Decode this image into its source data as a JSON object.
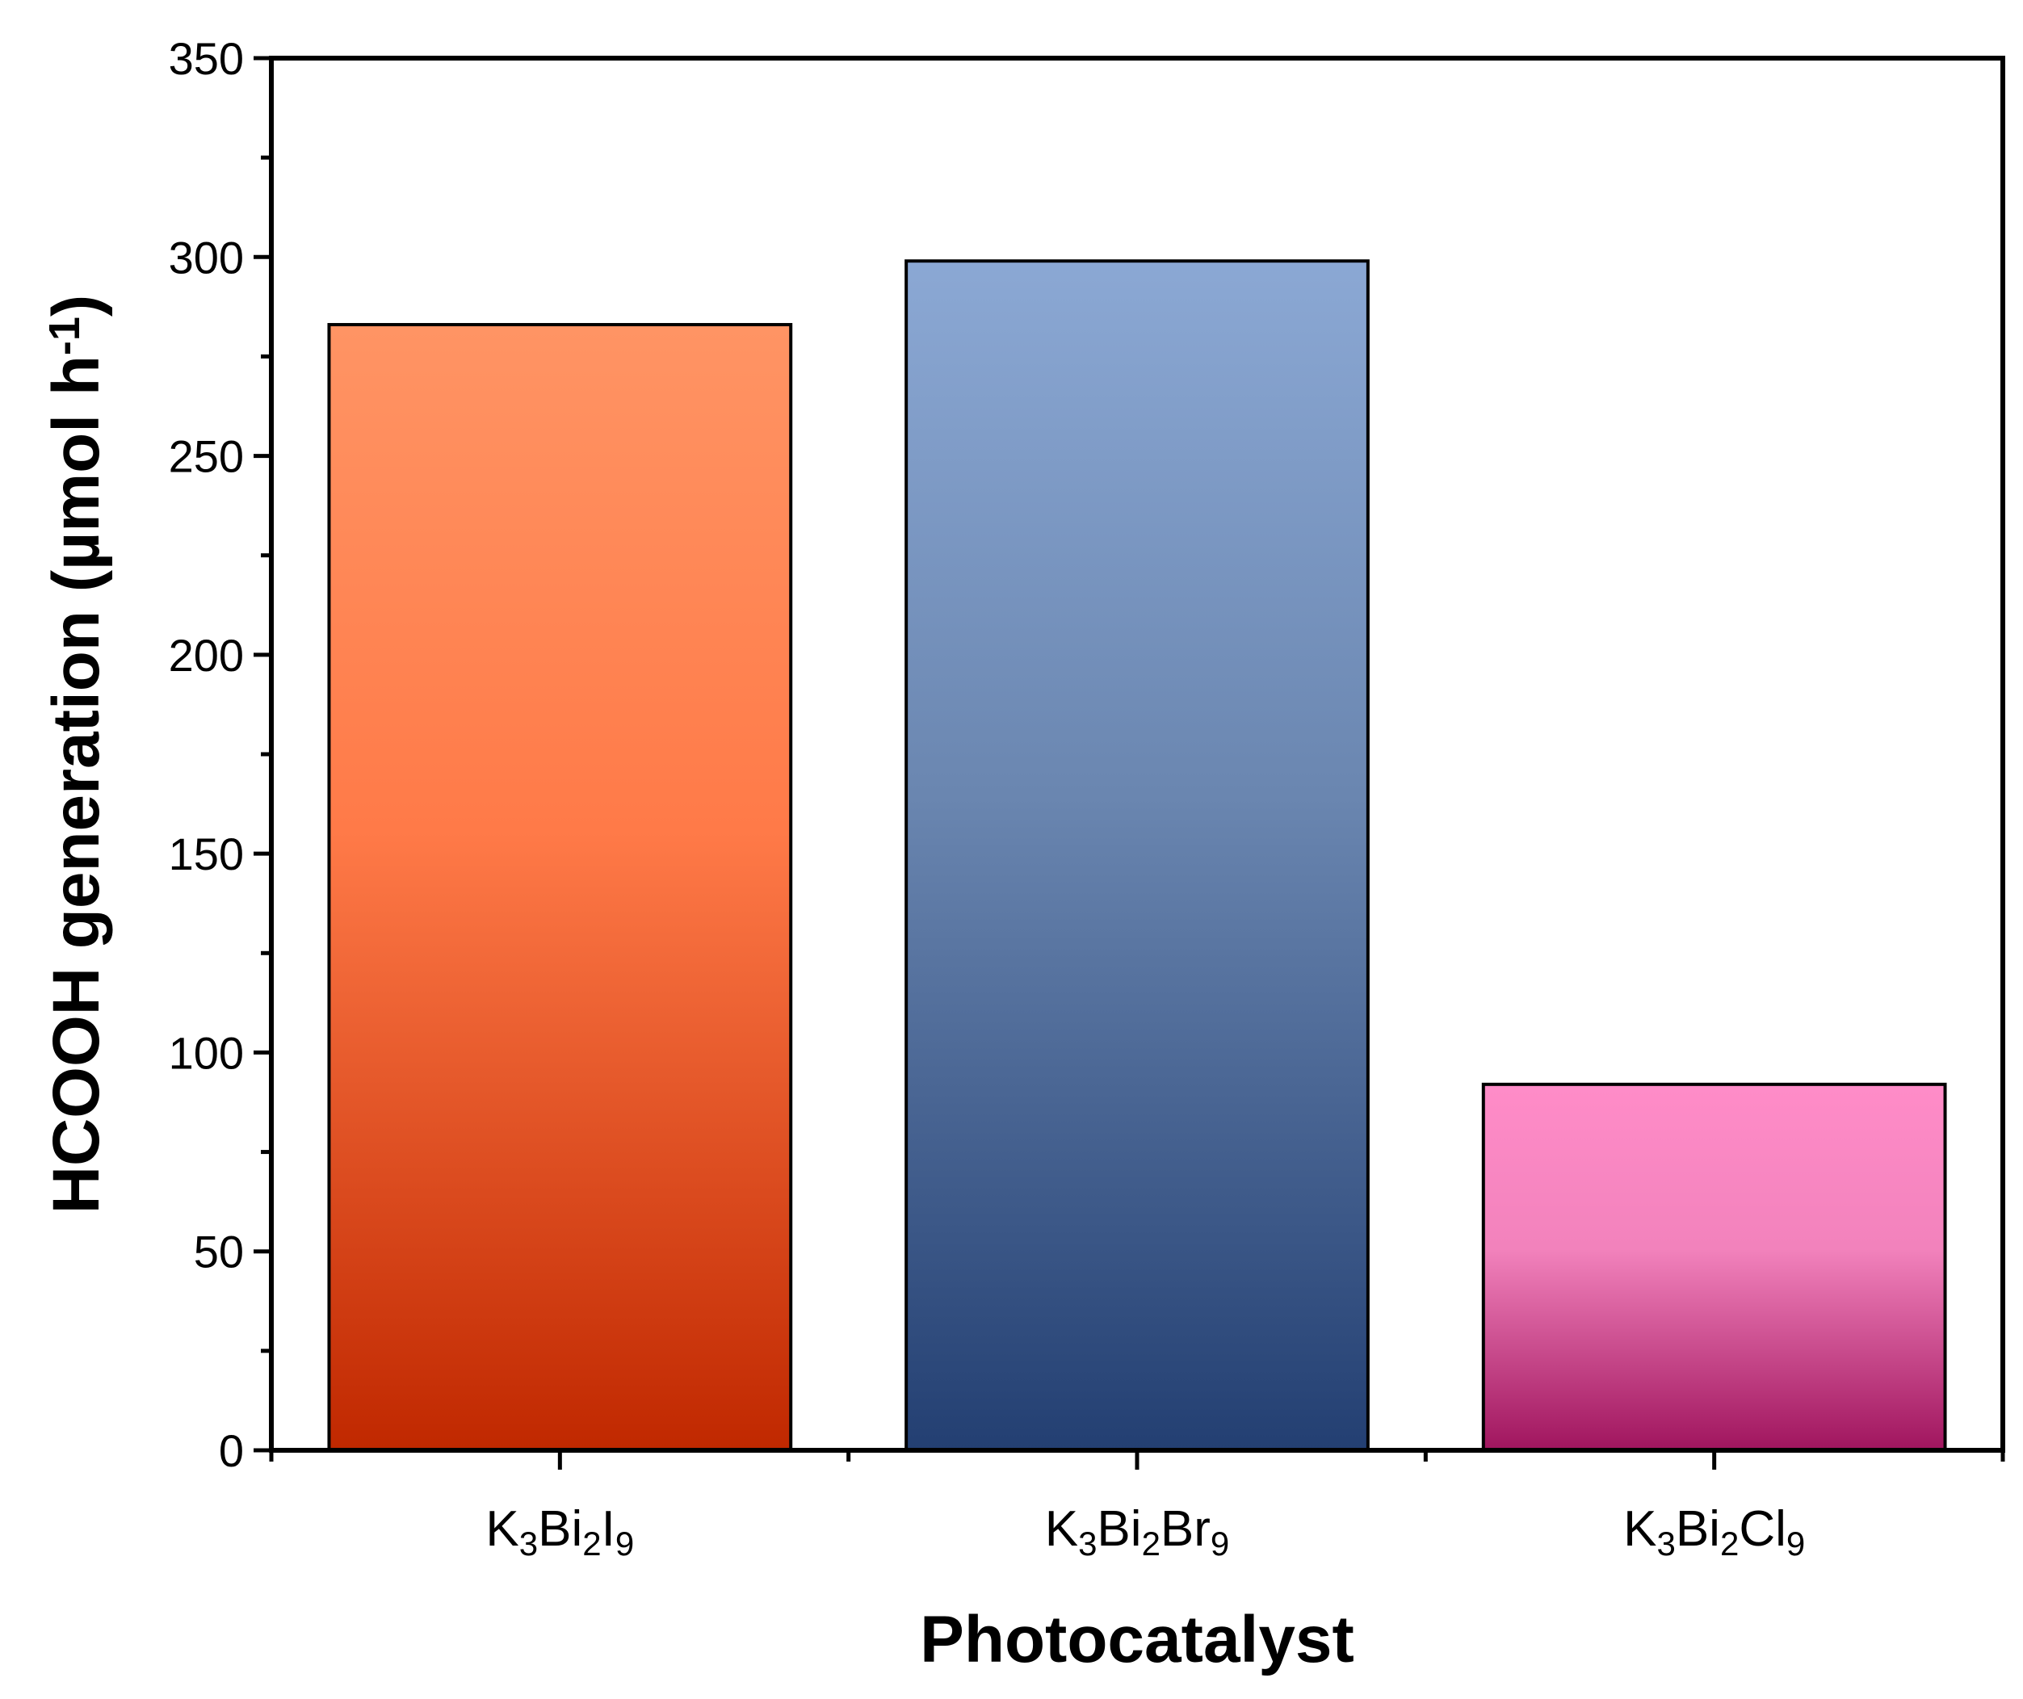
{
  "chart_data": {
    "type": "bar",
    "categories": [
      {
        "base": "K",
        "parts": [
          [
            "K",
            ""
          ],
          [
            "3",
            "sub"
          ],
          [
            "Bi",
            ""
          ],
          [
            "2",
            "sub"
          ],
          [
            "I",
            ""
          ],
          [
            "9",
            "sub"
          ]
        ]
      },
      {
        "base": "K",
        "parts": [
          [
            "K",
            ""
          ],
          [
            "3",
            "sub"
          ],
          [
            "Bi",
            ""
          ],
          [
            "2",
            "sub"
          ],
          [
            "Br",
            ""
          ],
          [
            "9",
            "sub"
          ]
        ]
      },
      {
        "base": "K",
        "parts": [
          [
            "K",
            ""
          ],
          [
            "3",
            "sub"
          ],
          [
            "Bi",
            ""
          ],
          [
            "2",
            "sub"
          ],
          [
            "Cl",
            ""
          ],
          [
            "9",
            "sub"
          ]
        ]
      }
    ],
    "category_text": [
      "K3Bi2I9",
      "K3Bi2Br9",
      "K3Bi2Cl9"
    ],
    "values": [
      283,
      299,
      92
    ],
    "xlabel": "Photocatalyst",
    "ylabel_parts": [
      [
        "HCOOH generation (µmol h",
        ""
      ],
      [
        "-1",
        "sup"
      ],
      [
        ")",
        ""
      ]
    ],
    "ylabel": "HCOOH generation (µmol h-1)",
    "ylim": [
      0,
      350
    ],
    "yticks": [
      0,
      50,
      100,
      150,
      200,
      250,
      300,
      350
    ],
    "grid": false,
    "bar_colors": [
      {
        "top": "#ff9464",
        "mid": "#ff7a48",
        "bottom": "#c02800"
      },
      {
        "top": "#8ba8d4",
        "mid": "#6a86b0",
        "bottom": "#233f72"
      },
      {
        "top": "#ff8cc8",
        "mid": "#f282bc",
        "bottom": "#a0155e"
      }
    ]
  }
}
